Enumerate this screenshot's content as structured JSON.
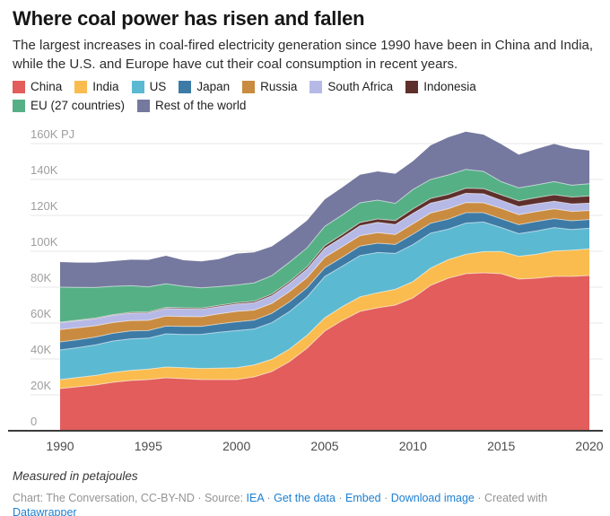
{
  "header": {
    "title": "Where coal power has risen and fallen",
    "subtitle": "The largest increases in coal-fired electricity generation since 1990 have been in China and India, while the U.S. and Europe have cut their coal consumption in recent years."
  },
  "chart_data": {
    "type": "area",
    "stacked": true,
    "title": "Where coal power has risen and fallen",
    "unit": "thousand petajoules (K PJ)",
    "grid": true,
    "legend_position": "top",
    "ylim": [
      0,
      160
    ],
    "y_ticks": [
      0,
      20,
      40,
      60,
      80,
      100,
      120,
      140,
      160
    ],
    "y_tick_labels": [
      "0",
      "20K",
      "40K",
      "60K",
      "80K",
      "100K",
      "120K",
      "140K",
      "160K PJ"
    ],
    "x_ticks": [
      1990,
      1995,
      2000,
      2005,
      2010,
      2015,
      2020
    ],
    "x": [
      1990,
      1991,
      1992,
      1993,
      1994,
      1995,
      1996,
      1997,
      1998,
      1999,
      2000,
      2001,
      2002,
      2003,
      2004,
      2005,
      2006,
      2007,
      2008,
      2009,
      2010,
      2011,
      2012,
      2013,
      2014,
      2015,
      2016,
      2017,
      2018,
      2019,
      2020
    ],
    "series": [
      {
        "name": "China",
        "color": "#e25d5b",
        "values": [
          23.5,
          24.5,
          25.5,
          27,
          28,
          28.5,
          29.5,
          29,
          28.5,
          28.5,
          28.5,
          30,
          33,
          38.5,
          46,
          55.5,
          61.5,
          66.5,
          68.5,
          70,
          74,
          81,
          85,
          87.5,
          88,
          87.5,
          84.5,
          85,
          86,
          86,
          86.5
        ]
      },
      {
        "name": "India",
        "color": "#fabc4e",
        "values": [
          5,
          5.2,
          5.3,
          5.5,
          5.6,
          5.8,
          6,
          6.1,
          6.2,
          6.4,
          6.6,
          6.7,
          6.8,
          7,
          7.2,
          7.4,
          7.7,
          8.1,
          8.4,
          8.8,
          9.1,
          9.6,
          10.3,
          10.8,
          11.8,
          12.4,
          12.7,
          13.3,
          14.2,
          14.6,
          14.8
        ]
      },
      {
        "name": "US",
        "color": "#5cb9d2",
        "values": [
          16.5,
          16.6,
          17,
          17.5,
          17.6,
          17.3,
          18.5,
          18.5,
          19,
          20,
          20.7,
          20,
          20.4,
          20.9,
          21.3,
          23,
          22.5,
          23,
          22.4,
          20,
          20.6,
          19.5,
          17,
          17.4,
          16.5,
          13.3,
          12.6,
          13,
          13,
          11.5,
          11.5
        ]
      },
      {
        "name": "Japan",
        "color": "#3d7ba6",
        "values": [
          4.5,
          4.4,
          4.4,
          4.3,
          4.4,
          4.2,
          4.3,
          4.5,
          4.4,
          4.6,
          4.9,
          4.9,
          5.2,
          5.4,
          5.2,
          4.9,
          5,
          5.3,
          5.2,
          5,
          5.8,
          5.5,
          5.6,
          5.8,
          5.2,
          4.9,
          5,
          5.3,
          5,
          4.9,
          4.9
        ]
      },
      {
        "name": "Russia",
        "color": "#c98b40",
        "values": [
          6.9,
          6.7,
          6.3,
          6,
          5.8,
          5.7,
          5.6,
          5.5,
          5.4,
          5.6,
          5.8,
          5.6,
          5.5,
          5.7,
          5.6,
          5.8,
          5.9,
          5.8,
          5.9,
          5.5,
          5.8,
          5.7,
          5.8,
          5.6,
          5.5,
          5.8,
          5.6,
          5.5,
          5.4,
          5.2,
          5
        ]
      },
      {
        "name": "South Africa",
        "color": "#b6b9e6",
        "values": [
          3.8,
          3.9,
          3.9,
          4,
          4.1,
          4.2,
          4.2,
          4.3,
          4.2,
          4.1,
          4.1,
          4.2,
          4.3,
          4.6,
          4.8,
          5,
          5.2,
          5.5,
          5.7,
          5.6,
          5.8,
          5.5,
          5.3,
          5.2,
          5,
          4.5,
          4.5,
          4.4,
          4.3,
          4.2,
          4.1
        ]
      },
      {
        "name": "Indonesia",
        "color": "#5e302c",
        "values": [
          0.3,
          0.3,
          0.4,
          0.4,
          0.5,
          0.5,
          0.6,
          0.6,
          0.6,
          0.7,
          0.7,
          0.8,
          0.9,
          1,
          1.2,
          1.5,
          1.6,
          1.8,
          1.9,
          2.2,
          2.5,
          2.6,
          2.7,
          2.8,
          2.9,
          3,
          3.2,
          3.4,
          3.6,
          3.8,
          4
        ]
      },
      {
        "name": "EU (27 countries)",
        "color": "#56b086",
        "values": [
          19.5,
          18.3,
          17,
          15.8,
          14.8,
          14,
          13.2,
          12,
          11.3,
          10.4,
          9.9,
          10.2,
          10.3,
          10.8,
          10.6,
          10.8,
          10.9,
          11,
          10.5,
          9.6,
          10.8,
          10.6,
          10.8,
          10.5,
          9.6,
          7.4,
          7.2,
          7.1,
          7.3,
          6.6,
          6.8
        ]
      },
      {
        "name": "Rest of the world",
        "color": "#75799f",
        "values": [
          14,
          13.8,
          13.9,
          14,
          14.5,
          15,
          15.6,
          14.5,
          14.8,
          15.3,
          17.5,
          17,
          16.3,
          15.6,
          15.2,
          15,
          15.3,
          15.6,
          16,
          16.5,
          15.8,
          19,
          21,
          21,
          20.5,
          20.9,
          18.5,
          20,
          21,
          20.5,
          18.5
        ]
      }
    ]
  },
  "footer": {
    "note": "Measured in petajoules",
    "byline_parts": [
      {
        "text": "Chart: The Conversation, CC-BY-ND · Source: ",
        "link": false,
        "name": "credit-text"
      },
      {
        "text": "IEA",
        "link": true,
        "name": "source-iea"
      },
      {
        "text": " · ",
        "link": false,
        "name": "separator"
      },
      {
        "text": "Get the data",
        "link": true,
        "name": "get-the-data"
      },
      {
        "text": " · ",
        "link": false,
        "name": "separator"
      },
      {
        "text": "Embed",
        "link": true,
        "name": "embed"
      },
      {
        "text": "  · ",
        "link": false,
        "name": "separator"
      },
      {
        "text": "Download image",
        "link": true,
        "name": "download-image"
      },
      {
        "text": " · Created with ",
        "link": false,
        "name": "created-with-text"
      },
      {
        "text": "Datawrapper",
        "link": true,
        "name": "datawrapper"
      }
    ]
  }
}
